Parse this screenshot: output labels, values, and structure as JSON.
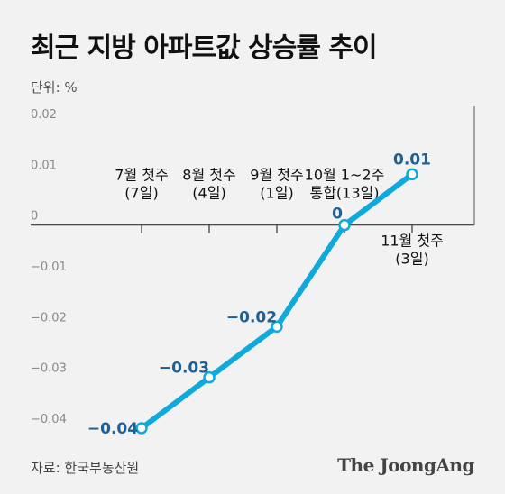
{
  "header": {
    "title": "최근 지방 아파트값 상승률 추이",
    "unit": "단위: %"
  },
  "footer": {
    "source": "자료: 한국부동산원",
    "brand": "The JoongAng"
  },
  "colors": {
    "line": "#0fa9dc",
    "label": "#1f5f93",
    "background": "#f2f2f2"
  },
  "chart_data": {
    "type": "line",
    "title": "최근 지방 아파트값 상승률 추이",
    "ylabel": "단위: %",
    "ylim": [
      -0.04,
      0.02
    ],
    "yticks": [
      0.02,
      0.01,
      0,
      -0.01,
      -0.02,
      -0.03,
      -0.04
    ],
    "ytick_labels": [
      "0.02",
      "0.01",
      "0",
      "-0.01",
      "-0.02",
      "-0.03",
      "-0.04"
    ],
    "grid": false,
    "categories": [
      {
        "line1": "7월 첫주",
        "line2": "(7일)",
        "position": "above"
      },
      {
        "line1": "8월 첫주",
        "line2": "(4일)",
        "position": "above"
      },
      {
        "line1": "9월 첫주",
        "line2": "(1일)",
        "position": "above"
      },
      {
        "line1": "10월 1~2주",
        "line2": "통합(13일)",
        "position": "above"
      },
      {
        "line1": "11월 첫주",
        "line2": "(3일)",
        "position": "below"
      }
    ],
    "series": [
      {
        "values": [
          -0.04,
          -0.03,
          -0.02,
          0,
          0.01
        ],
        "labels": [
          "-0.04",
          "-0.03",
          "-0.02",
          "0",
          "0.01"
        ]
      }
    ]
  }
}
